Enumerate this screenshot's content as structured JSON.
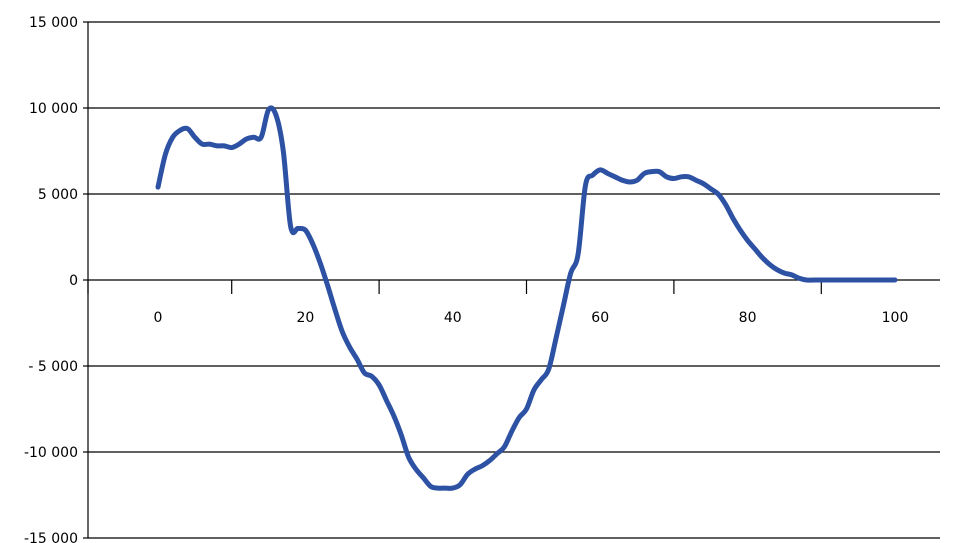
{
  "colors": {
    "series": "#2E52A3",
    "axis": "#000000",
    "background": "#ffffff"
  },
  "chart_data": {
    "type": "line",
    "title": "",
    "xlabel": "",
    "ylabel": "",
    "xlim": [
      0,
      100
    ],
    "ylim": [
      -15000,
      15000
    ],
    "grid": true,
    "x_ticks": [
      {
        "value": 0,
        "label": "0"
      },
      {
        "value": 20,
        "label": "20"
      },
      {
        "value": 40,
        "label": "40"
      },
      {
        "value": 60,
        "label": "60"
      },
      {
        "value": 80,
        "label": "80"
      },
      {
        "value": 100,
        "label": "100"
      }
    ],
    "y_ticks": [
      {
        "value": 15000,
        "label": "15 000"
      },
      {
        "value": 10000,
        "label": "10 000"
      },
      {
        "value": 5000,
        "label": "5 000"
      },
      {
        "value": 0,
        "label": "0"
      },
      {
        "value": -5000,
        "label": "- 5 000"
      },
      {
        "value": -10000,
        "label": "-10 000"
      },
      {
        "value": -15000,
        "label": "-15 000"
      }
    ],
    "series": [
      {
        "x": [
          0,
          1,
          2,
          3,
          4,
          5,
          6,
          7,
          8,
          9,
          10,
          11,
          12,
          13,
          14,
          15,
          16,
          17,
          18,
          19,
          20,
          21,
          22,
          23,
          24,
          25,
          26,
          27,
          28,
          29,
          30,
          31,
          32,
          33,
          34,
          35,
          36,
          37,
          38,
          39,
          40,
          41,
          42,
          43,
          44,
          45,
          46,
          47,
          48,
          49,
          50,
          51,
          52,
          53,
          54,
          55,
          56,
          57,
          58,
          59,
          60,
          61,
          62,
          63,
          64,
          65,
          66,
          67,
          68,
          69,
          70,
          71,
          72,
          73,
          74,
          75,
          76,
          77,
          78,
          79,
          80,
          81,
          82,
          83,
          84,
          85,
          86,
          87,
          88,
          89,
          90,
          91,
          92,
          93,
          94,
          95,
          96,
          97,
          98,
          99,
          100
        ],
        "values": [
          5400,
          7300,
          8300,
          8700,
          8800,
          8300,
          7900,
          7900,
          7800,
          7800,
          7700,
          7900,
          8200,
          8300,
          8300,
          9900,
          9600,
          7500,
          3100,
          3000,
          2900,
          2100,
          1000,
          -300,
          -1700,
          -3000,
          -3900,
          -4600,
          -5400,
          -5600,
          -6100,
          -7000,
          -7900,
          -9000,
          -10300,
          -11000,
          -11500,
          -12000,
          -12100,
          -12100,
          -12100,
          -11900,
          -11300,
          -11000,
          -10800,
          -10500,
          -10100,
          -9700,
          -8800,
          -8000,
          -7500,
          -6400,
          -5800,
          -5200,
          -3400,
          -1500,
          400,
          1500,
          5500,
          6100,
          6400,
          6200,
          6000,
          5800,
          5700,
          5800,
          6200,
          6300,
          6300,
          6000,
          5900,
          6000,
          6000,
          5800,
          5600,
          5300,
          5000,
          4400,
          3600,
          2900,
          2300,
          1800,
          1300,
          900,
          600,
          400,
          300,
          100,
          0,
          0,
          0,
          0,
          0,
          0,
          0,
          0,
          0,
          0,
          0,
          0,
          0
        ]
      }
    ]
  }
}
